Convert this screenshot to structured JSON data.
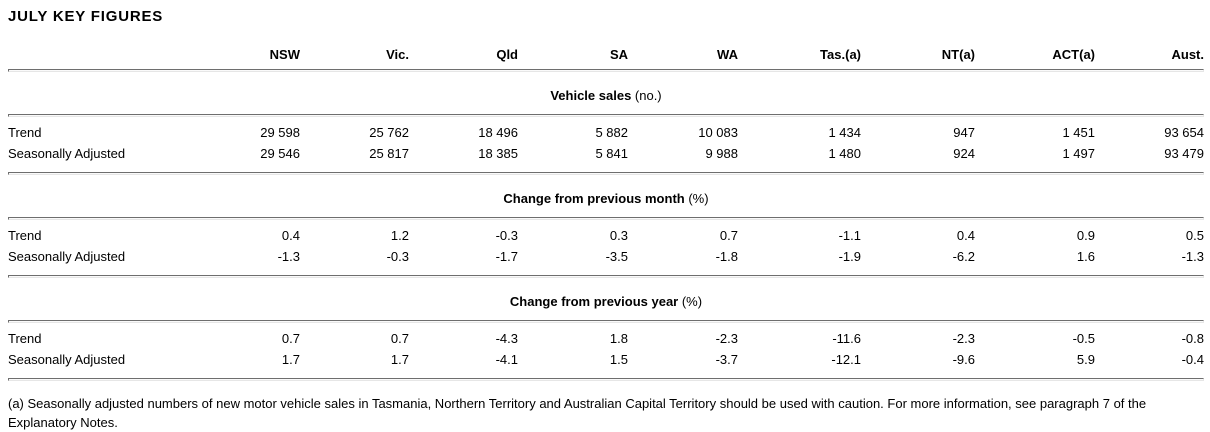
{
  "title": "JULY KEY FIGURES",
  "table": {
    "column_headers": [
      {
        "label": "NSW",
        "note": ""
      },
      {
        "label": "Vic.",
        "note": ""
      },
      {
        "label": "Qld",
        "note": ""
      },
      {
        "label": "SA",
        "note": ""
      },
      {
        "label": "WA",
        "note": ""
      },
      {
        "label": "Tas.",
        "note": "(a)"
      },
      {
        "label": "NT",
        "note": "(a)"
      },
      {
        "label": "ACT",
        "note": "(a)"
      },
      {
        "label": "Aust.",
        "note": ""
      }
    ],
    "sections": [
      {
        "heading": "Vehicle sales",
        "unit": "(no.)",
        "rows": [
          {
            "label": "Trend",
            "values": [
              "29 598",
              "25 762",
              "18 496",
              "5 882",
              "10 083",
              "1 434",
              "947",
              "1 451",
              "93 654"
            ]
          },
          {
            "label": "Seasonally Adjusted",
            "values": [
              "29 546",
              "25 817",
              "18 385",
              "5 841",
              "9 988",
              "1 480",
              "924",
              "1 497",
              "93 479"
            ]
          }
        ]
      },
      {
        "heading": "Change from previous month",
        "unit": "(%)",
        "rows": [
          {
            "label": "Trend",
            "values": [
              "0.4",
              "1.2",
              "-0.3",
              "0.3",
              "0.7",
              "-1.1",
              "0.4",
              "0.9",
              "0.5"
            ]
          },
          {
            "label": "Seasonally Adjusted",
            "values": [
              "-1.3",
              "-0.3",
              "-1.7",
              "-3.5",
              "-1.8",
              "-1.9",
              "-6.2",
              "1.6",
              "-1.3"
            ]
          }
        ]
      },
      {
        "heading": "Change from previous year",
        "unit": "(%)",
        "rows": [
          {
            "label": "Trend",
            "values": [
              "0.7",
              "0.7",
              "-4.3",
              "1.8",
              "-2.3",
              "-11.6",
              "-2.3",
              "-0.5",
              "-0.8"
            ]
          },
          {
            "label": "Seasonally Adjusted",
            "values": [
              "1.7",
              "1.7",
              "-4.1",
              "1.5",
              "-3.7",
              "-12.1",
              "-9.6",
              "5.9",
              "-0.4"
            ]
          }
        ]
      }
    ]
  },
  "footnote": "(a) Seasonally adjusted numbers of new motor vehicle sales in Tasmania, Northern Territory and Australian Capital Territory should be used with caution. For more information, see paragraph 7 of the Explanatory Notes."
}
